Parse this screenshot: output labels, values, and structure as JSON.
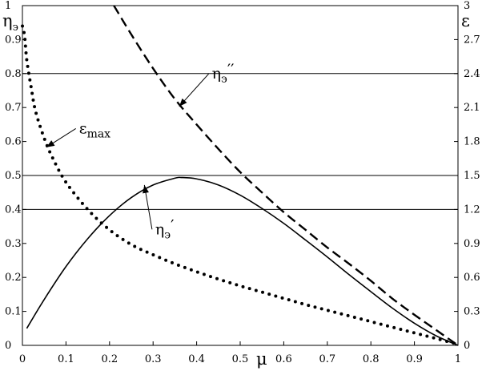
{
  "chart_data": {
    "type": "line",
    "x_range": [
      0,
      1
    ],
    "x_ticks": [
      "0",
      "0.1",
      "0.2",
      "0.3",
      "0.4",
      "0.5",
      "0.6",
      "0.7",
      "0.8",
      "0.9",
      "1"
    ],
    "x_tick_values": [
      0,
      0.1,
      0.2,
      0.3,
      0.4,
      0.5,
      0.6,
      0.7,
      0.8,
      0.9,
      1
    ],
    "xlabel": "μ",
    "y_left": {
      "label_main": "η",
      "label_sub": "э",
      "range": [
        0,
        1
      ],
      "ticks": [
        "0",
        "0.1",
        "0.2",
        "0.3",
        "0.4",
        "0.5",
        "0.6",
        "0.7",
        "0.8",
        "0.9",
        "1"
      ],
      "tick_values": [
        0,
        0.1,
        0.2,
        0.3,
        0.4,
        0.5,
        0.6,
        0.7,
        0.8,
        0.9,
        1
      ]
    },
    "y_right": {
      "label": "ε",
      "range": [
        0,
        3
      ],
      "ticks": [
        "0",
        "0.3",
        "0.6",
        "0.9",
        "1.2",
        "1.5",
        "1.8",
        "2.1",
        "2.4",
        "2.7",
        "3"
      ],
      "tick_values": [
        0,
        0.3,
        0.6,
        0.9,
        1.2,
        1.5,
        1.8,
        2.1,
        2.4,
        2.7,
        3
      ]
    },
    "reference_lines_left": [
      0.4,
      0.5,
      0.8
    ],
    "series": [
      {
        "style": "solid",
        "axis": "left",
        "x": [
          0.01,
          0.05,
          0.1,
          0.15,
          0.2,
          0.25,
          0.3,
          0.35,
          0.365,
          0.4,
          0.45,
          0.5,
          0.55,
          0.6,
          0.65,
          0.7,
          0.75,
          0.8,
          0.85,
          0.9,
          0.95,
          1.0
        ],
        "y": [
          0.05,
          0.135,
          0.232,
          0.314,
          0.382,
          0.435,
          0.472,
          0.492,
          0.494,
          0.49,
          0.472,
          0.442,
          0.403,
          0.359,
          0.31,
          0.26,
          0.208,
          0.158,
          0.109,
          0.065,
          0.028,
          0.0
        ]
      },
      {
        "style": "dashed",
        "axis": "left",
        "x": [
          0.21,
          0.25,
          0.3,
          0.35,
          0.4,
          0.45,
          0.5,
          0.55,
          0.6,
          0.65,
          0.7,
          0.75,
          0.8,
          0.85,
          0.9,
          0.95,
          1.0
        ],
        "y": [
          1.0,
          0.915,
          0.815,
          0.725,
          0.65,
          0.578,
          0.51,
          0.45,
          0.392,
          0.34,
          0.288,
          0.24,
          0.19,
          0.137,
          0.09,
          0.045,
          0.0
        ]
      },
      {
        "style": "dotted",
        "axis": "right",
        "x": [
          0.0,
          0.005,
          0.01,
          0.02,
          0.03,
          0.05,
          0.07,
          0.1,
          0.15,
          0.2,
          0.25,
          0.3,
          0.35,
          0.4,
          0.45,
          0.5,
          0.55,
          0.6,
          0.65,
          0.7,
          0.75,
          0.8,
          0.85,
          0.9,
          0.95,
          1.0
        ],
        "y": [
          2.82,
          2.73,
          2.52,
          2.28,
          2.07,
          1.83,
          1.65,
          1.44,
          1.2,
          1.02,
          0.89,
          0.8,
          0.72,
          0.65,
          0.585,
          0.525,
          0.47,
          0.415,
          0.36,
          0.31,
          0.26,
          0.21,
          0.16,
          0.11,
          0.06,
          0.01
        ]
      }
    ],
    "annotations": [
      {
        "main": "η",
        "sub": "э",
        "sup": "′′",
        "target": [
          0.36,
          0.703
        ],
        "text_at": [
          0.435,
          0.785
        ]
      },
      {
        "main": "ε",
        "sub": "max",
        "sup": "",
        "target": [
          0.055,
          0.583
        ],
        "text_at": [
          0.13,
          0.624
        ]
      },
      {
        "main": "η",
        "sub": "э",
        "sup": "′",
        "target": [
          0.28,
          0.472
        ],
        "text_at": [
          0.305,
          0.327
        ]
      }
    ]
  }
}
